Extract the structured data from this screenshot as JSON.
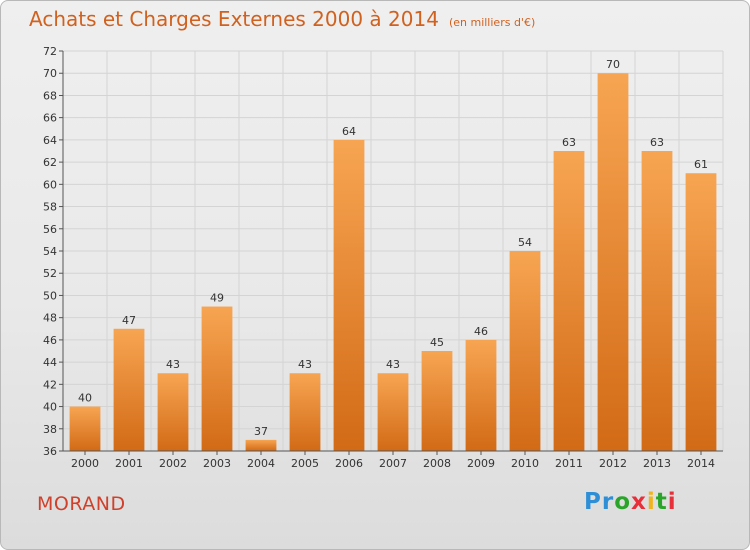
{
  "header": {
    "title": "Achats et Charges Externes 2000 à 2014",
    "subtitle": "(en milliers d'€)"
  },
  "footer": {
    "commune": "MORAND",
    "logo": {
      "text": "Proxiti",
      "letter_colors": [
        "#2f8fd6",
        "#2f8fd6",
        "#2aa52a",
        "#e8303a",
        "#f0b41c",
        "#2aa52a",
        "#e8303a"
      ]
    }
  },
  "colors": {
    "bar_top": "#f7a552",
    "bar_bottom": "#d26a16",
    "grid": "#d4d4d4",
    "axis": "#555555",
    "title": "#d0611f"
  },
  "chart_data": {
    "type": "bar",
    "title": "Achats et Charges Externes 2000 à 2014",
    "subtitle": "(en milliers d'€)",
    "categories": [
      "2000",
      "2001",
      "2002",
      "2003",
      "2004",
      "2005",
      "2006",
      "2007",
      "2008",
      "2009",
      "2010",
      "2011",
      "2012",
      "2013",
      "2014"
    ],
    "values": [
      40,
      47,
      43,
      49,
      37,
      43,
      64,
      43,
      45,
      46,
      54,
      63,
      70,
      63,
      61
    ],
    "data_labels": [
      "40",
      "47",
      "43",
      "49",
      "37",
      "43",
      "64",
      "43",
      "45",
      "46",
      "54",
      "63",
      "70",
      "63",
      "61"
    ],
    "ylim": [
      36,
      72
    ],
    "yticks": [
      36,
      38,
      40,
      42,
      44,
      46,
      48,
      50,
      52,
      54,
      56,
      58,
      60,
      62,
      64,
      66,
      68,
      70,
      72
    ],
    "grid": true,
    "xlabel": "",
    "ylabel": ""
  }
}
